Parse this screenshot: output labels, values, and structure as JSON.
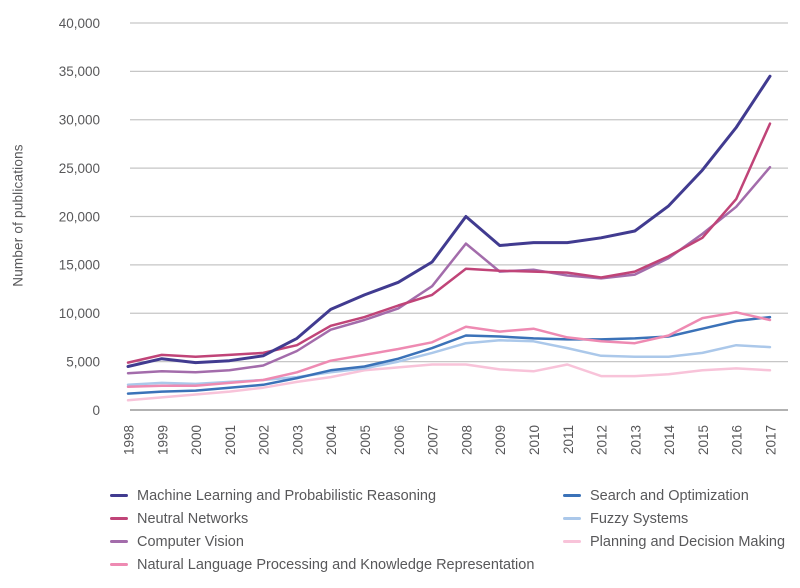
{
  "chart_data": {
    "type": "line",
    "title": "",
    "ylabel": "Number of publications",
    "x_labels": [
      "1998",
      "1999",
      "2000",
      "2001",
      "2002",
      "2003",
      "2004",
      "2005",
      "2006",
      "2007",
      "2008",
      "2009",
      "2010",
      "2011",
      "2012",
      "2013",
      "2014",
      "2015",
      "2016",
      "2017"
    ],
    "ylim": [
      0,
      40000
    ],
    "y_ticks": [
      {
        "value": 0,
        "label": "0"
      },
      {
        "value": 5000,
        "label": "5,000"
      },
      {
        "value": 10000,
        "label": "10,000"
      },
      {
        "value": 15000,
        "label": "15,000"
      },
      {
        "value": 20000,
        "label": "20,000"
      },
      {
        "value": 25000,
        "label": "25,000"
      },
      {
        "value": 30000,
        "label": "30,000"
      },
      {
        "value": 35000,
        "label": "35,000"
      },
      {
        "value": 40000,
        "label": "40,000"
      }
    ],
    "grid": "horizontal",
    "legend_position": "bottom, two columns",
    "colors": {
      "text": "#58585a",
      "gridline": "#c6c6c6",
      "zeroline": "#b2b2b2"
    },
    "series": [
      {
        "name": "Machine Learning and Probabilistic Reasoning",
        "color": "#413b90",
        "legend_column": "left",
        "line_width": 3,
        "values": [
          4500,
          5300,
          4900,
          5100,
          5600,
          7400,
          10400,
          11900,
          13200,
          15300,
          20000,
          17000,
          17300,
          17300,
          17800,
          18500,
          21100,
          24800,
          29200,
          34500
        ]
      },
      {
        "name": "Neutral Networks",
        "color": "#c04478",
        "legend_column": "left",
        "line_width": 2.5,
        "values": [
          4900,
          5700,
          5500,
          5700,
          5900,
          6700,
          8700,
          9600,
          10800,
          11900,
          14600,
          14400,
          14300,
          14200,
          13700,
          14300,
          15900,
          17800,
          21800,
          29600
        ]
      },
      {
        "name": "Computer Vision",
        "color": "#a36cab",
        "legend_column": "left",
        "line_width": 2.5,
        "values": [
          3800,
          4000,
          3900,
          4100,
          4600,
          6100,
          8300,
          9300,
          10500,
          12800,
          17200,
          14300,
          14500,
          13900,
          13600,
          14000,
          15700,
          18200,
          21000,
          25100
        ]
      },
      {
        "name": "Natural Language Processing and Knowledge Representation",
        "color": "#ee8ab2",
        "legend_column": "left",
        "line_width": 2.5,
        "values": [
          2400,
          2500,
          2500,
          2800,
          3100,
          3900,
          5100,
          5700,
          6300,
          7000,
          8600,
          8100,
          8400,
          7500,
          7100,
          6900,
          7700,
          9500,
          10100,
          9300
        ]
      },
      {
        "name": "Search and Optimization",
        "color": "#3b72b8",
        "legend_column": "right",
        "line_width": 2.5,
        "values": [
          1700,
          1900,
          2000,
          2300,
          2600,
          3300,
          4100,
          4500,
          5300,
          6400,
          7700,
          7600,
          7400,
          7300,
          7300,
          7400,
          7600,
          8400,
          9200,
          9600
        ]
      },
      {
        "name": "Fuzzy Systems",
        "color": "#abc8ea",
        "legend_column": "right",
        "line_width": 2.5,
        "values": [
          2600,
          2800,
          2700,
          2900,
          3100,
          3400,
          3900,
          4300,
          5000,
          5900,
          6900,
          7200,
          7100,
          6400,
          5600,
          5500,
          5500,
          5900,
          6700,
          6500
        ]
      },
      {
        "name": "Planning and Decision Making",
        "color": "#f8c3d9",
        "legend_column": "right",
        "line_width": 2.5,
        "values": [
          1000,
          1300,
          1600,
          1900,
          2300,
          2900,
          3400,
          4100,
          4400,
          4700,
          4700,
          4200,
          4000,
          4700,
          3500,
          3500,
          3700,
          4100,
          4300,
          4100
        ]
      }
    ]
  }
}
